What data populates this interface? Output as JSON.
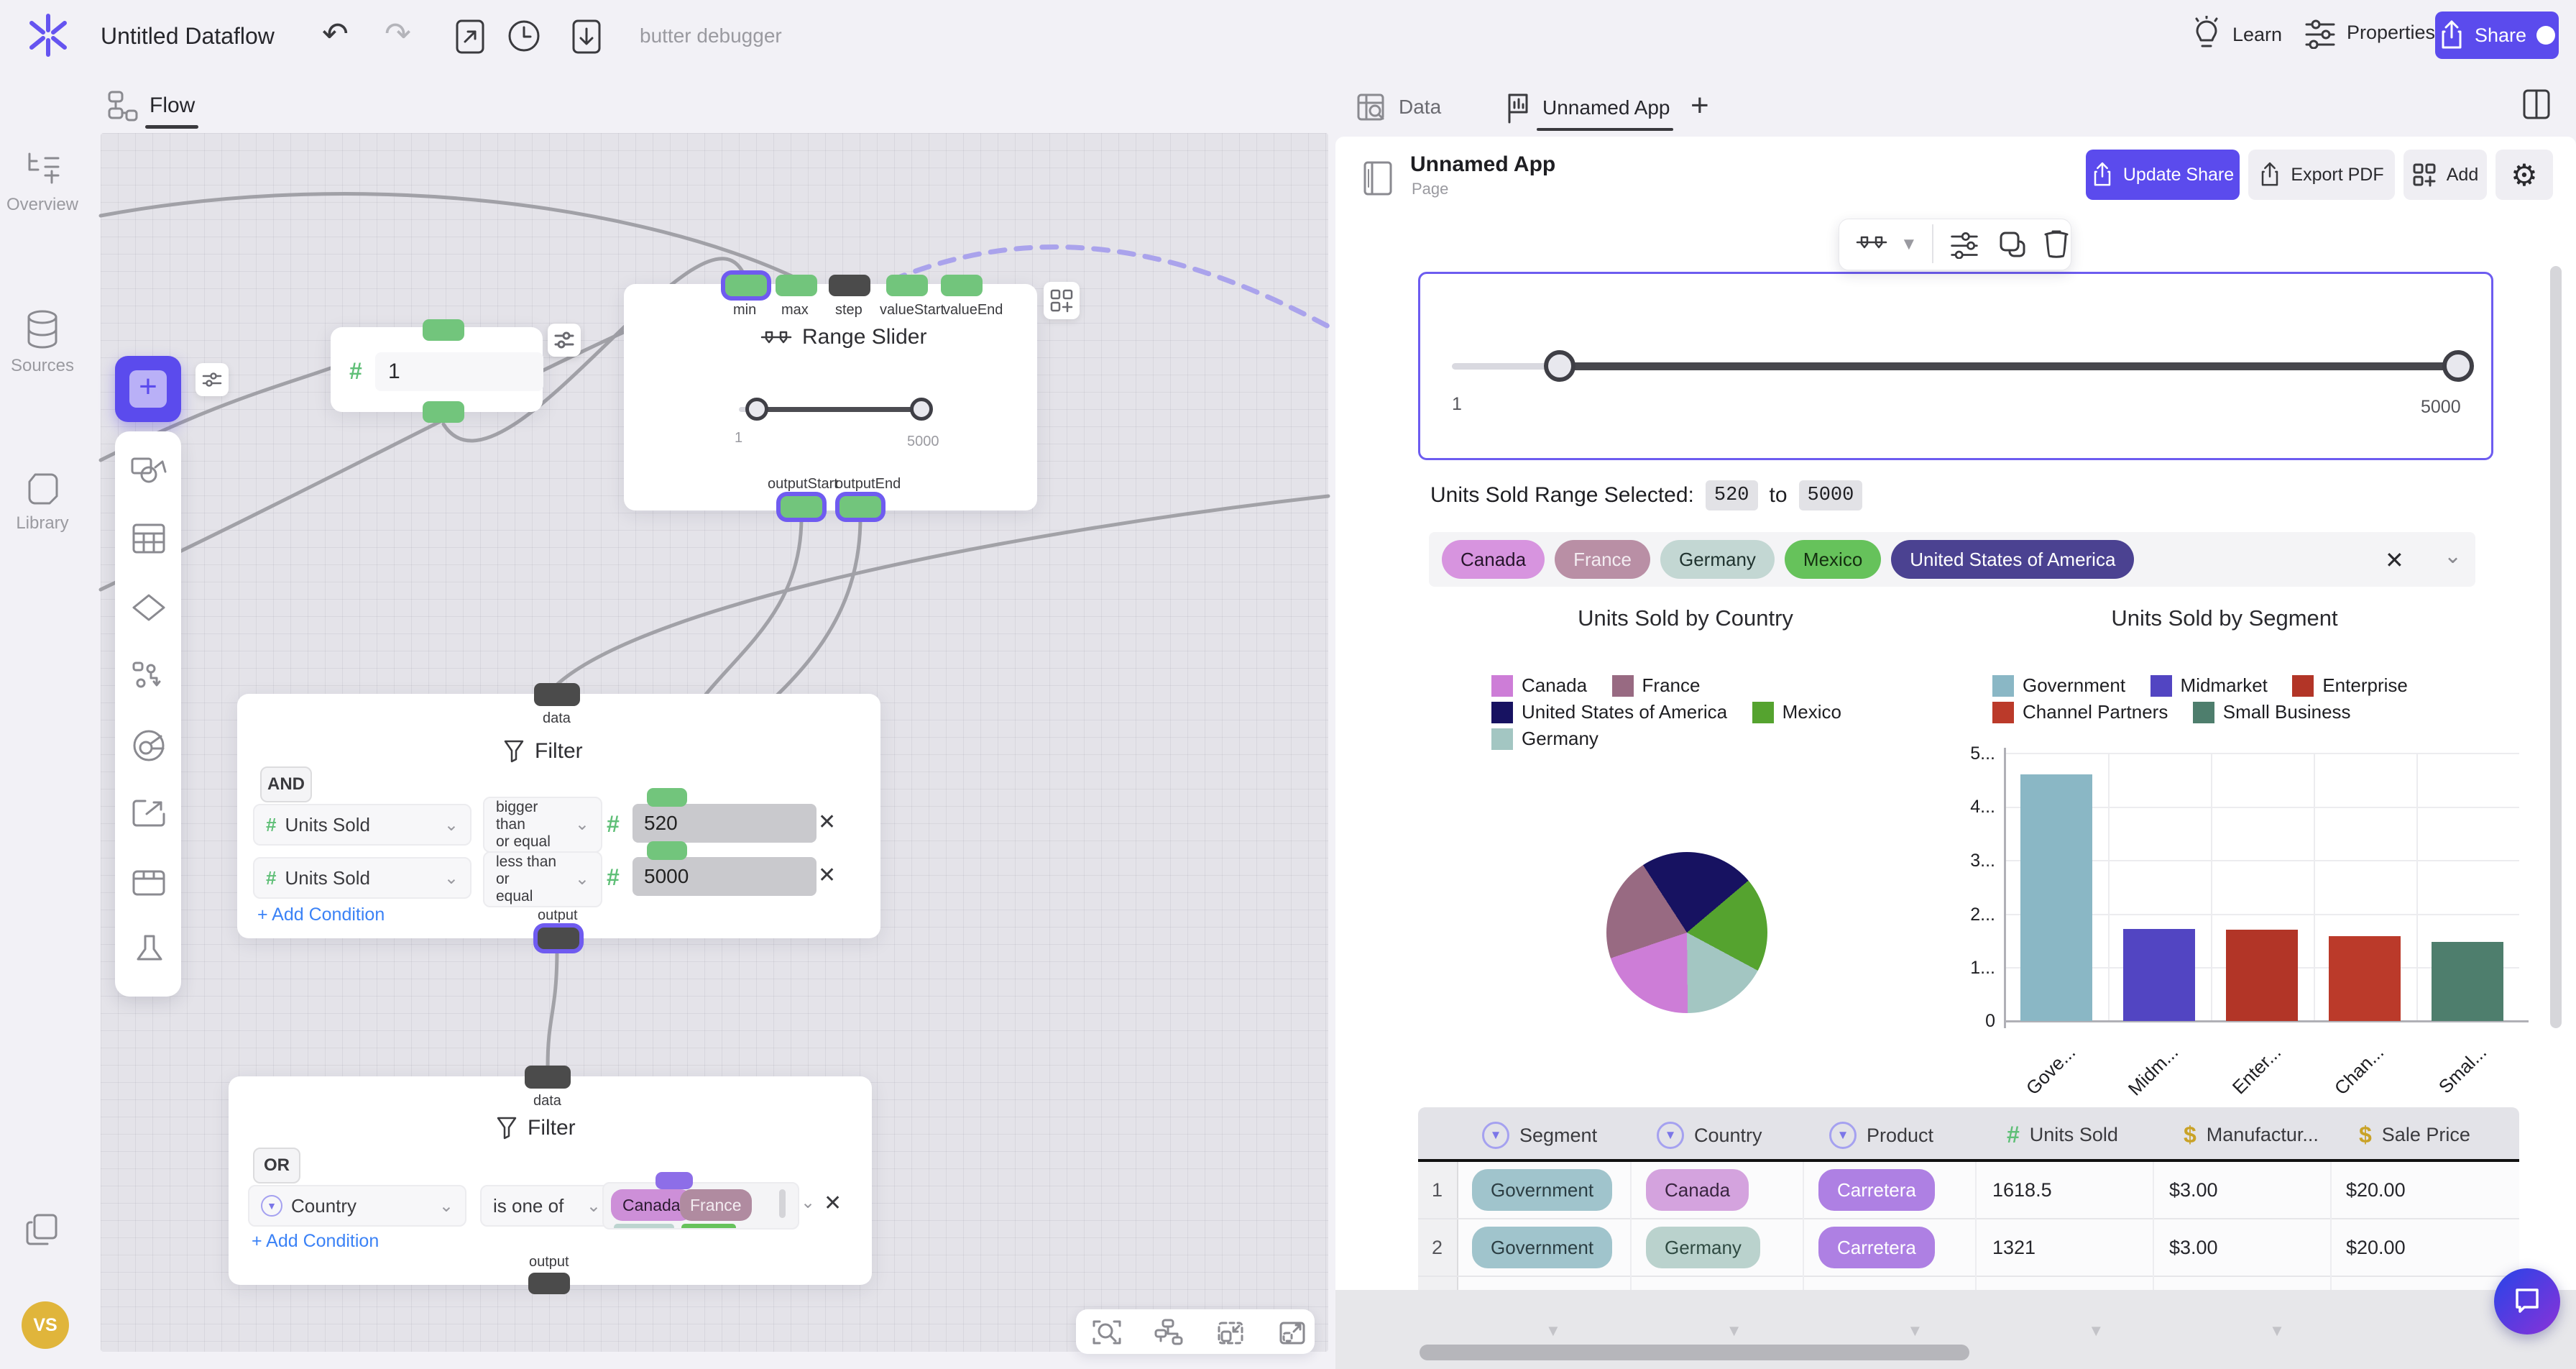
{
  "topbar": {
    "title": "Untitled Dataflow",
    "status": "butter debugger",
    "learn": "Learn",
    "properties": "Properties",
    "share": "Share"
  },
  "sidebar": {
    "items": [
      {
        "label": "Overview"
      },
      {
        "label": "Sources"
      },
      {
        "label": "Library"
      }
    ]
  },
  "canvas": {
    "tab": "Flow",
    "number_node": {
      "value": "1"
    },
    "slider_node": {
      "title": "Range Slider",
      "inputs": [
        "min",
        "max",
        "step",
        "valueStart",
        "valueEnd"
      ],
      "outputs": [
        "outputStart",
        "outputEnd"
      ],
      "min_label": "1",
      "max_label": "5000"
    },
    "filter1": {
      "title": "Filter",
      "operator": "AND",
      "in_port": "data",
      "out_port": "output",
      "add_condition": "+ Add Condition",
      "rows": [
        {
          "column": "Units Sold",
          "op_line1": "bigger than",
          "op_line2": "or equal",
          "value": "520"
        },
        {
          "column": "Units Sold",
          "op_line1": "less than or",
          "op_line2": "equal",
          "value": "5000"
        }
      ]
    },
    "filter2": {
      "title": "Filter",
      "operator": "OR",
      "in_port": "data",
      "out_port": "output",
      "add_condition": "+ Add Condition",
      "row": {
        "column": "Country",
        "op": "is one of",
        "chips": [
          {
            "label": "Canada",
            "bg": "#cd8fd8",
            "fg": "#2b1a30"
          },
          {
            "label": "France",
            "bg": "#b08ba0",
            "fg": "#f3ecf1"
          }
        ]
      }
    }
  },
  "panel": {
    "tabs": {
      "data": "Data",
      "app": "Unnamed App",
      "add": "+"
    },
    "header": {
      "title": "Unnamed App",
      "subtitle": "Page",
      "update_share": "Update Share",
      "export_pdf": "Export PDF",
      "add": "Add"
    },
    "slider_widget": {
      "min_label": "1",
      "max_label": "5000"
    },
    "range_text": {
      "prefix": "Units Sold Range Selected:",
      "from": "520",
      "joiner": "to",
      "to": "5000"
    },
    "filter_chips": [
      {
        "label": "Canada",
        "bg": "#d794df",
        "fg": "#26152b"
      },
      {
        "label": "France",
        "bg": "#b98fa5",
        "fg": "#f3ecf1"
      },
      {
        "label": "Germany",
        "bg": "#c3d7d3",
        "fg": "#20332f"
      },
      {
        "label": "Mexico",
        "bg": "#66c25b",
        "fg": "#142f10"
      },
      {
        "label": "United States of America",
        "bg": "#4b4291",
        "fg": "#ffffff"
      }
    ],
    "table": {
      "columns": [
        {
          "label": "Segment",
          "type": "category"
        },
        {
          "label": "Country",
          "type": "category"
        },
        {
          "label": "Product",
          "type": "category"
        },
        {
          "label": "Units Sold",
          "type": "number"
        },
        {
          "label": "Manufactur...",
          "type": "currency"
        },
        {
          "label": "Sale Price",
          "type": "currency"
        }
      ],
      "rows": [
        {
          "num": "1",
          "segment": {
            "text": "Government",
            "bg": "#a0c4cc",
            "fg": "#2c3e43"
          },
          "country": {
            "text": "Canada",
            "bg": "#d4a3de",
            "fg": "#3a2640"
          },
          "product": {
            "text": "Carretera",
            "bg": "#ae80e3",
            "fg": "#ffffff"
          },
          "units": "1618.5",
          "manufacturing": "$3.00",
          "sale_price": "$20.00"
        },
        {
          "num": "2",
          "segment": {
            "text": "Government",
            "bg": "#a0c4cc",
            "fg": "#2c3e43"
          },
          "country": {
            "text": "Germany",
            "bg": "#bad2cd",
            "fg": "#2f4a42"
          },
          "product": {
            "text": "Carretera",
            "bg": "#ae80e3",
            "fg": "#ffffff"
          },
          "units": "1321",
          "manufacturing": "$3.00",
          "sale_price": "$20.00"
        }
      ]
    }
  },
  "chart_data": [
    {
      "type": "pie",
      "title": "Units Sold by Country",
      "labels": [
        "Canada",
        "France",
        "United States of America",
        "Mexico",
        "Germany"
      ],
      "values_pct": [
        20,
        21,
        23,
        19,
        17
      ],
      "colors": [
        "#cd7dd7",
        "#986a82",
        "#171261",
        "#55a32f",
        "#a3c6c2"
      ],
      "draw_order": [
        2,
        3,
        4,
        0,
        1
      ],
      "start_deg": -33,
      "legend_position": "top"
    },
    {
      "type": "bar",
      "title": "Units Sold by Segment",
      "categories": [
        "Government",
        "Midmarket",
        "Enterprise",
        "Channel Partners",
        "Small Business"
      ],
      "values": [
        4.6,
        1.72,
        1.7,
        1.58,
        1.48
      ],
      "ylim": [
        0,
        5
      ],
      "ytick_labels": [
        "0",
        "1...",
        "2...",
        "3...",
        "4...",
        "5..."
      ],
      "xtick_labels": [
        "Gove...",
        "Midm...",
        "Enter...",
        "Chan...",
        "Smal..."
      ],
      "colors": [
        "#8ab7c5",
        "#5245c2",
        "#b23527",
        "#bb3a2a",
        "#4e7e6d"
      ],
      "grid": true,
      "legend_position": "top"
    }
  ]
}
